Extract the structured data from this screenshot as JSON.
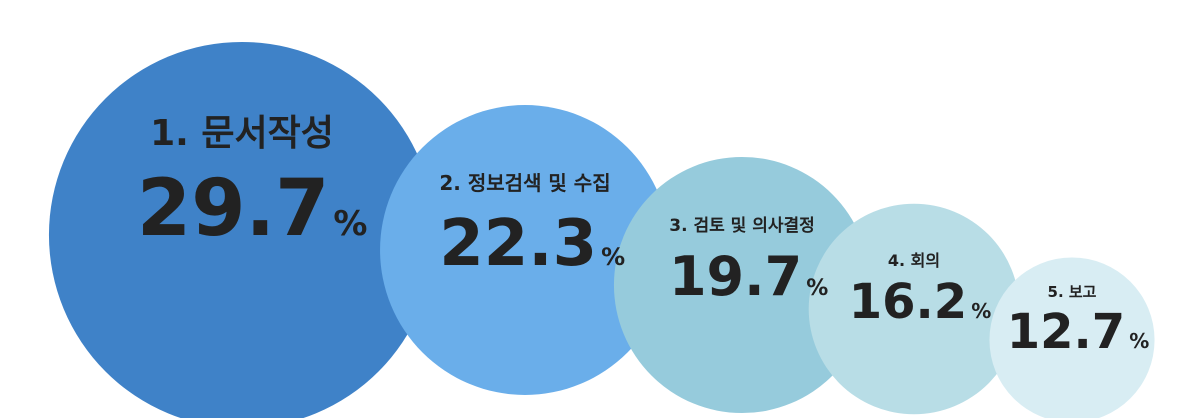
{
  "chart_data": {
    "type": "bubble",
    "categories": [
      "1. 문서작성",
      "2. 정보검색 및 수집",
      "3. 검토 및 의사결정",
      "4. 회의",
      "5. 보고"
    ],
    "values": [
      29.7,
      22.3,
      19.7,
      16.2,
      12.7
    ],
    "unit": "%",
    "colors": [
      "#3f82c8",
      "#6aaeea",
      "#96cbdc",
      "#b8dde6",
      "#d8edf3"
    ]
  }
}
